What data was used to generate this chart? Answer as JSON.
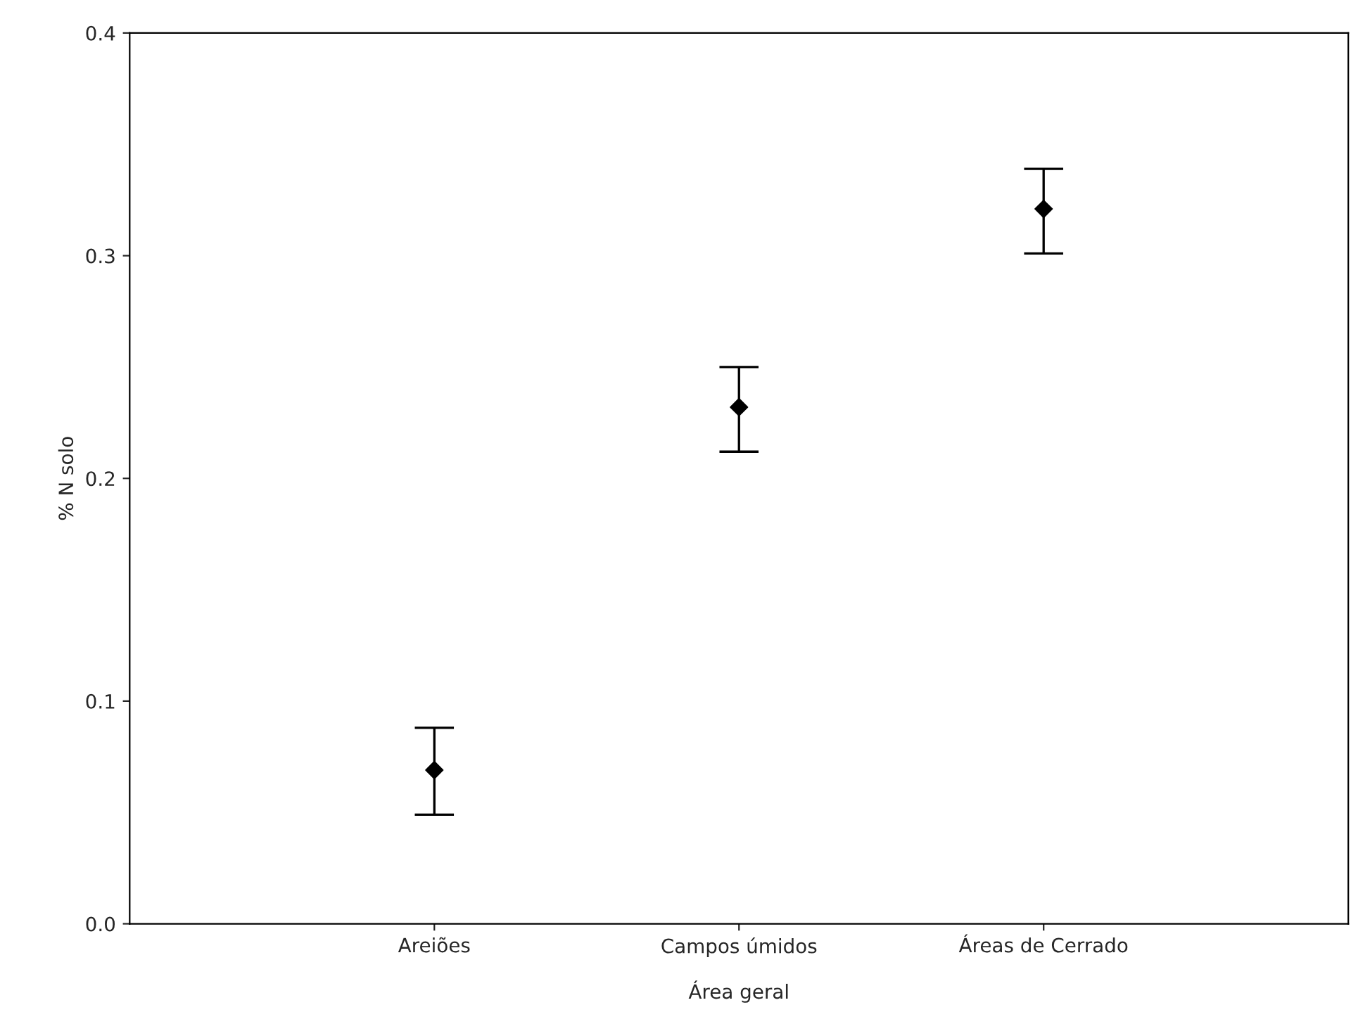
{
  "chart_data": {
    "type": "scatter",
    "xlabel": "Área geral",
    "ylabel": "% N solo",
    "categories": [
      "Areiões",
      "Campos úmidos",
      "Áreas de Cerrado"
    ],
    "values": [
      0.069,
      0.232,
      0.321
    ],
    "errors": [
      [
        0.049,
        0.088
      ],
      [
        0.212,
        0.25
      ],
      [
        0.301,
        0.339
      ]
    ],
    "color": "#000000",
    "marker": "diamond",
    "ylim": [
      0.0,
      0.4
    ],
    "yticks": [
      {
        "value": 0.0,
        "label": "0.0"
      },
      {
        "value": 0.1,
        "label": "0.1"
      },
      {
        "value": 0.2,
        "label": "0.2"
      },
      {
        "value": 0.3,
        "label": "0.3"
      },
      {
        "value": 0.4,
        "label": "0.4"
      }
    ],
    "grid": false,
    "legend": false
  }
}
